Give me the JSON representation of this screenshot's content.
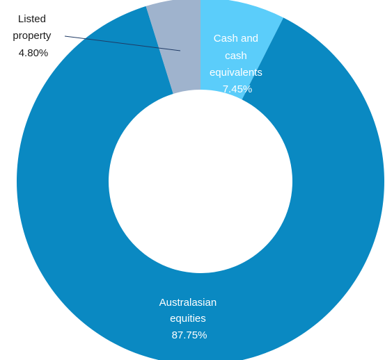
{
  "chart_data": {
    "type": "pie",
    "donut": true,
    "title": "",
    "slices": [
      {
        "name_lines": [
          "Cash and",
          "cash",
          "equivalents"
        ],
        "value_label": "7.45%",
        "value": 7.45,
        "color": "#5bcdfa",
        "label_color": "#ffffff",
        "label_position": "inside"
      },
      {
        "name_lines": [
          "Australasian",
          "equities"
        ],
        "value_label": "87.75%",
        "value": 87.75,
        "color": "#0a89c2",
        "label_color": "#ffffff",
        "label_position": "inside"
      },
      {
        "name_lines": [
          "Listed",
          "property"
        ],
        "value_label": "4.80%",
        "value": 4.8,
        "color": "#9fb3cd",
        "label_color": "#1a1a1a",
        "label_position": "outside-top-left"
      }
    ],
    "start_angle": "12 o'clock, clockwise",
    "leader_line_color": "#1f3a64"
  }
}
